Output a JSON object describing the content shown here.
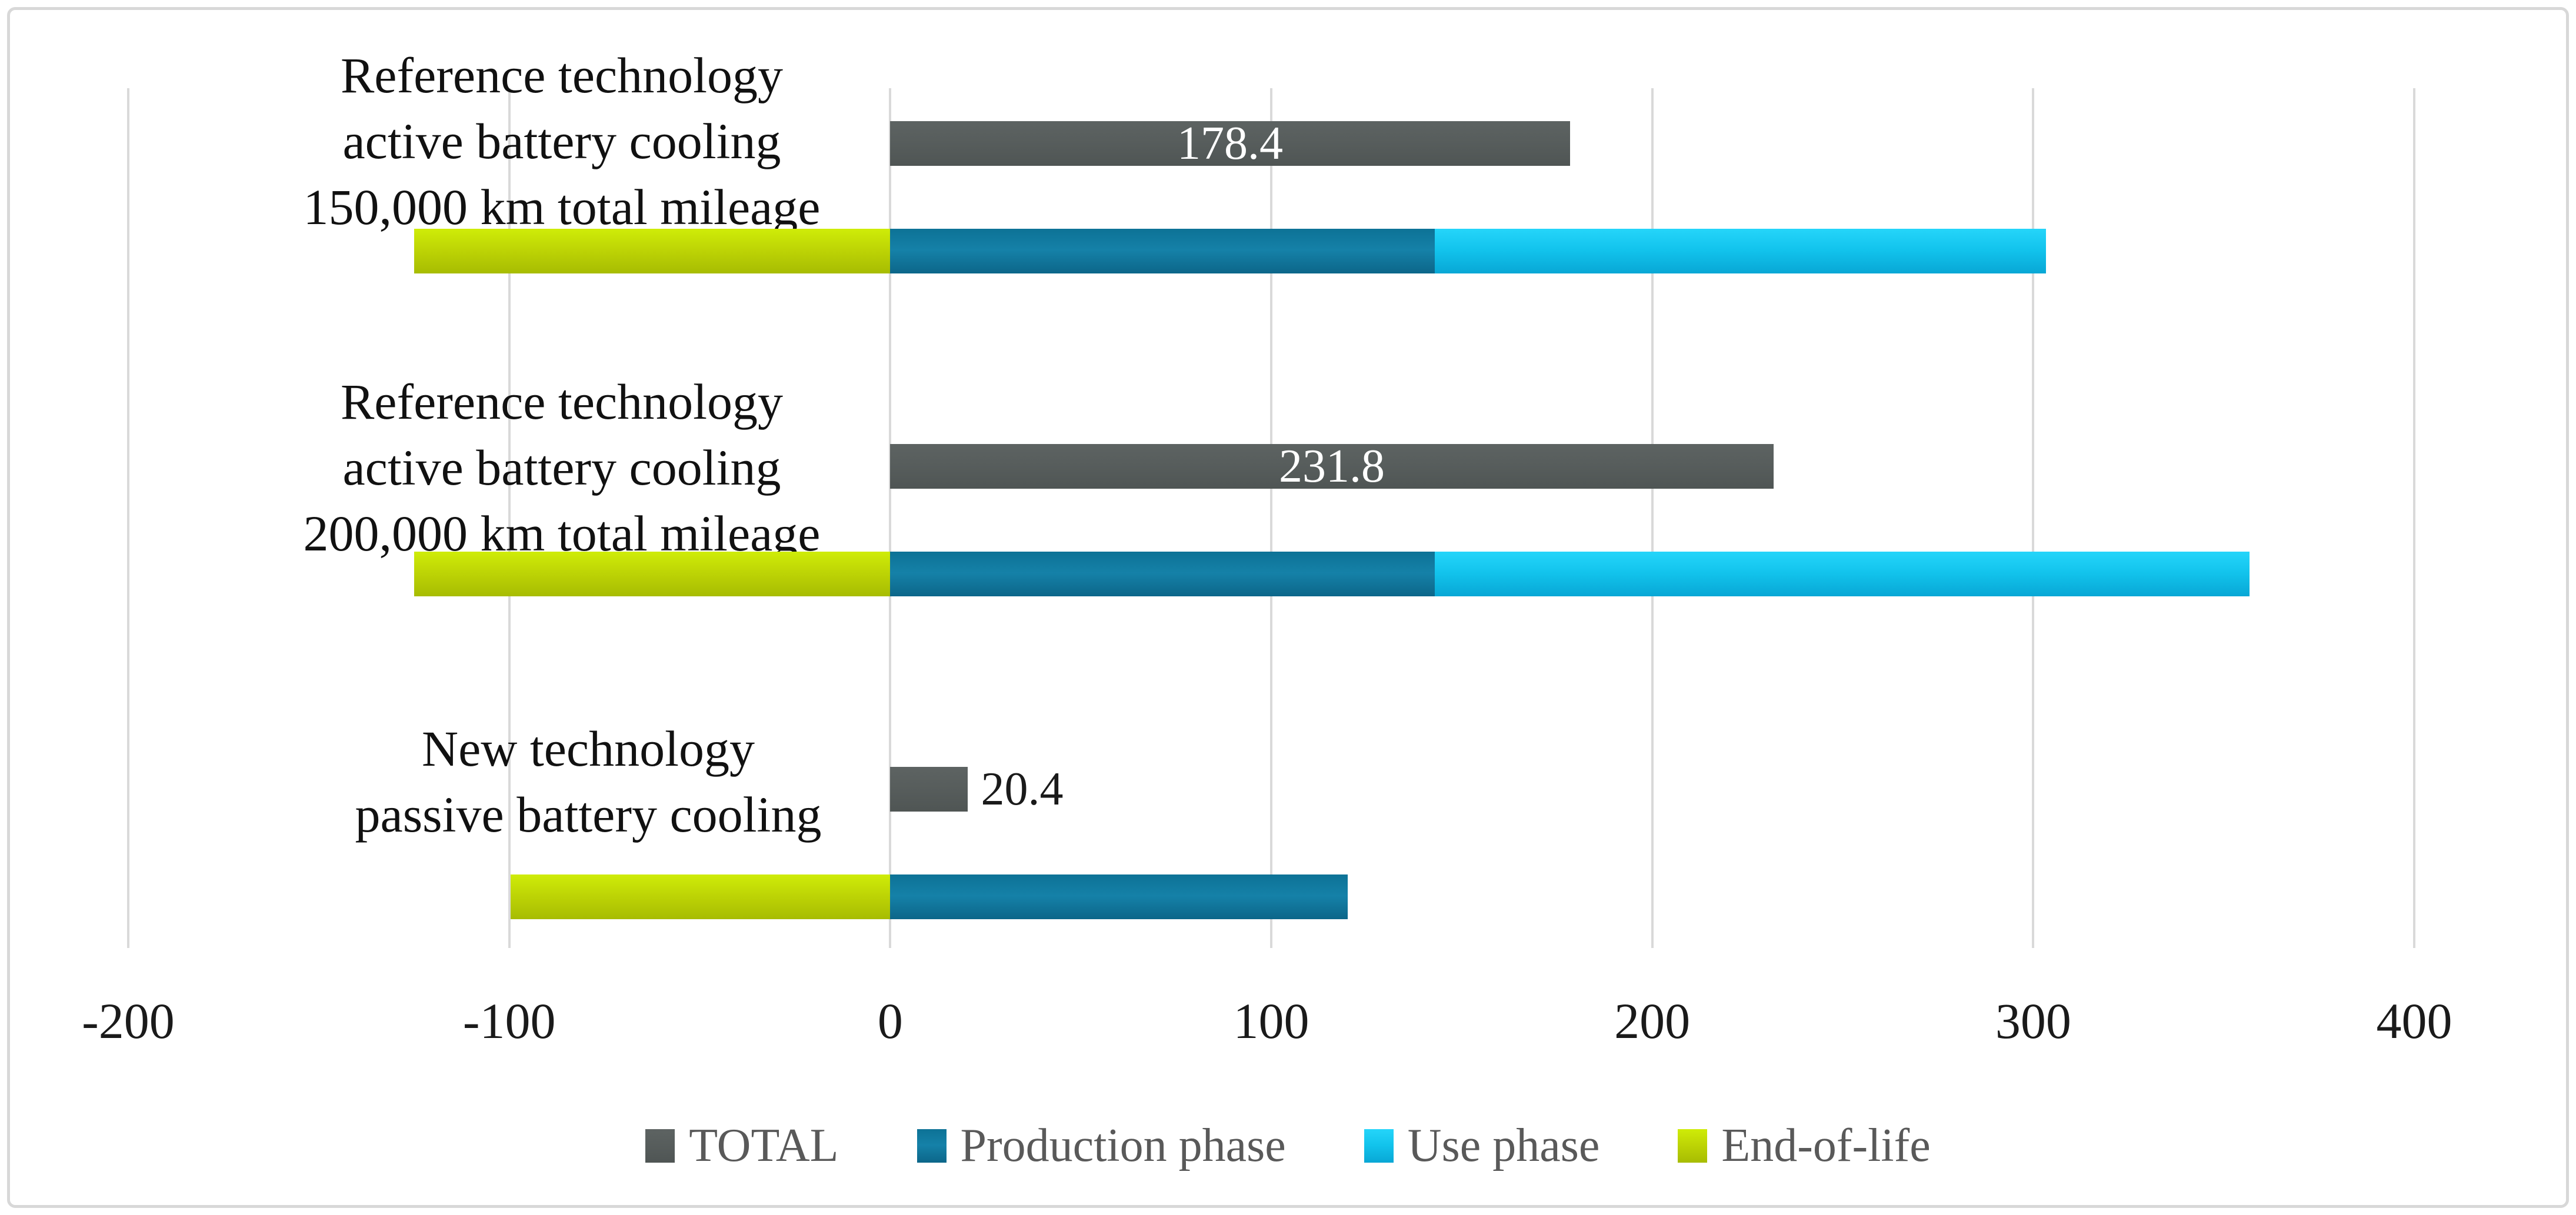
{
  "chart_data": {
    "type": "bar",
    "orientation": "horizontal",
    "title": "",
    "xlabel": "",
    "ylabel": "",
    "xlim": [
      -200,
      400
    ],
    "xticks": [
      "-200",
      "-100",
      "0",
      "100",
      "200",
      "300",
      "400"
    ],
    "grid": true,
    "legend_position": "bottom",
    "categories": [
      {
        "lines": [
          "Reference technology",
          "active battery cooling",
          "150,000 km total mileage"
        ]
      },
      {
        "lines": [
          "Reference technology",
          "active battery cooling",
          "200,000 km total mileage"
        ]
      },
      {
        "lines": [
          "New technology",
          "passive battery cooling"
        ]
      }
    ],
    "series": [
      {
        "name": "TOTAL",
        "role": "solo",
        "values": [
          178.4,
          231.8,
          20.4
        ],
        "data_labels": [
          "178.4",
          "231.8",
          "20.4"
        ]
      },
      {
        "name": "Production phase",
        "role": "stacked",
        "values": [
          143.0,
          143.0,
          120.0
        ]
      },
      {
        "name": "Use phase",
        "role": "stacked",
        "values": [
          160.4,
          213.8,
          0.0
        ]
      },
      {
        "name": "End-of-life",
        "role": "stacked",
        "values": [
          -125.0,
          -125.0,
          -99.6
        ]
      }
    ],
    "legend": [
      "TOTAL",
      "Production phase",
      "Use phase",
      "End-of-life"
    ]
  },
  "palette": {
    "TOTAL": {
      "solid": "#575d5c",
      "grad": [
        "#5d6362",
        "#575d5c",
        "#4f5554"
      ]
    },
    "Production phase": {
      "solid": "#0f7598",
      "grad": [
        "#0d7296",
        "#1581a8",
        "#0c6689"
      ]
    },
    "Use phase": {
      "solid": "#12c3ec",
      "grad": [
        "#25d5fa",
        "#12c3ec",
        "#08a7d5"
      ]
    },
    "End-of-life": {
      "solid": "#bdd405",
      "grad": [
        "#cfec08",
        "#bdd405",
        "#a7bc02"
      ]
    },
    "gridline": "#d9d9d9",
    "frame_border": "#d8d8d8",
    "tick_text": "#1a1a1a",
    "category_text": "#111111",
    "legend_text": "#595959",
    "label_inside": "#ffffff",
    "label_outside": "#1a1a1a"
  }
}
